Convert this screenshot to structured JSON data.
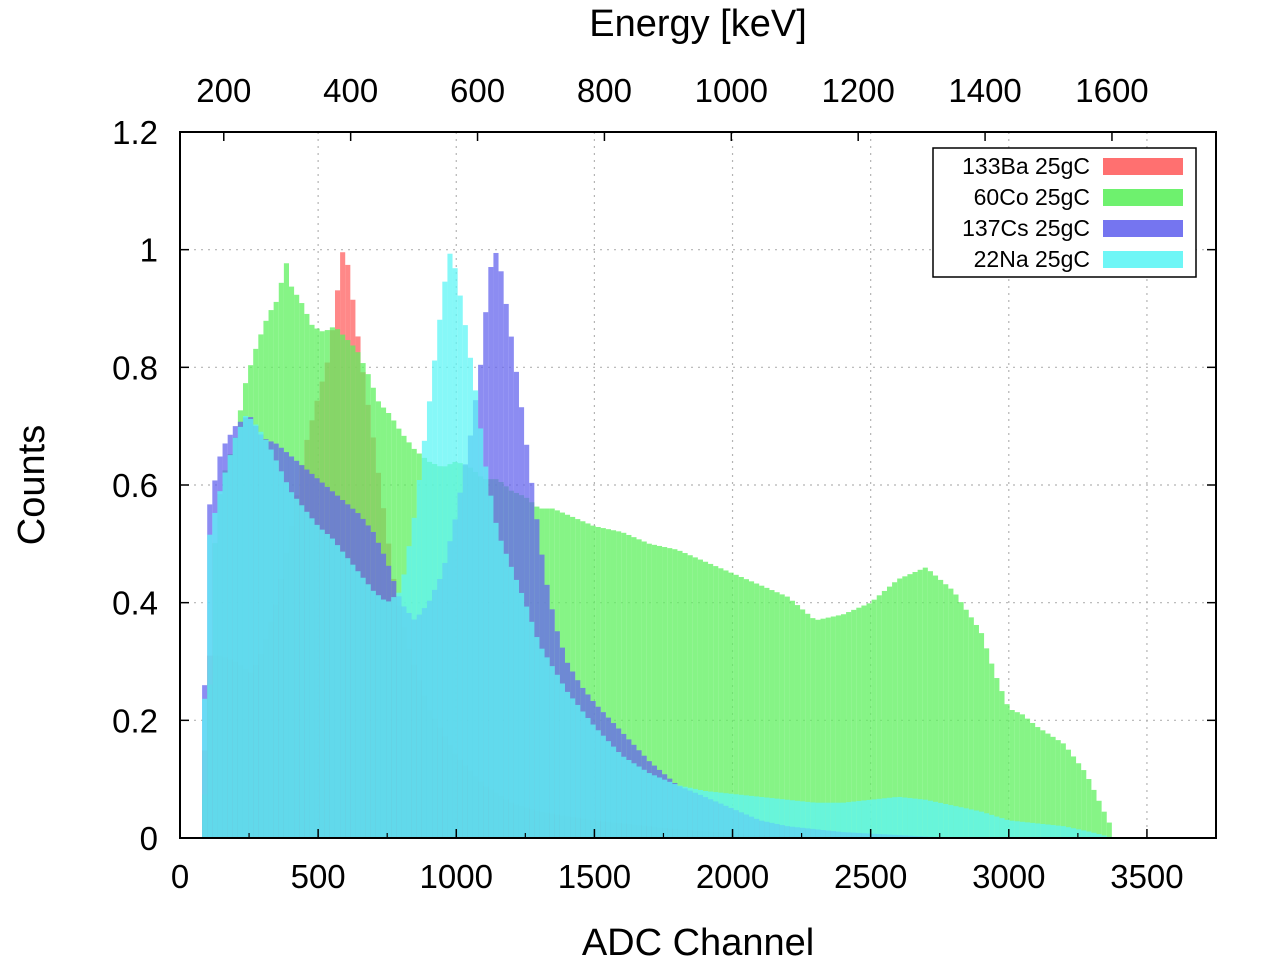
{
  "chart_data": {
    "type": "histogram",
    "xlabel": "ADC Channel",
    "x2label": "Energy [keV]",
    "ylabel": "Counts",
    "xlim": [
      0,
      3750
    ],
    "ylim": [
      0,
      1.2
    ],
    "x2lim": [
      131,
      1764
    ],
    "xticks": [
      0,
      500,
      1000,
      1500,
      2000,
      2500,
      3000,
      3500
    ],
    "xtick_labels": [
      "0",
      "500",
      "1000",
      "1500",
      "2000",
      "2500",
      "3000",
      "3500"
    ],
    "x2ticks": [
      200,
      400,
      600,
      800,
      1000,
      1200,
      1400,
      1600
    ],
    "x2tick_labels": [
      "200",
      "400",
      "600",
      "800",
      "1000",
      "1200",
      "1400",
      "1600"
    ],
    "yticks": [
      0,
      0.2,
      0.4,
      0.6,
      0.8,
      1,
      1.2
    ],
    "ytick_labels": [
      "0",
      "0.2",
      "0.4",
      "0.6",
      "0.8",
      "1",
      "1.2"
    ],
    "grid": true,
    "legend_position": "top-right",
    "series": [
      {
        "name": "133Ba 25gC",
        "color": "#ff6060",
        "points": [
          [
            80,
            0.01
          ],
          [
            100,
            0.31
          ],
          [
            150,
            0.31
          ],
          [
            200,
            0.3
          ],
          [
            260,
            0.28
          ],
          [
            300,
            0.32
          ],
          [
            350,
            0.4
          ],
          [
            400,
            0.52
          ],
          [
            450,
            0.66
          ],
          [
            500,
            0.75
          ],
          [
            540,
            0.82
          ],
          [
            570,
            0.93
          ],
          [
            590,
            1.0
          ],
          [
            610,
            0.97
          ],
          [
            630,
            0.9
          ],
          [
            660,
            0.8
          ],
          [
            700,
            0.68
          ],
          [
            740,
            0.55
          ],
          [
            780,
            0.42
          ],
          [
            830,
            0.32
          ],
          [
            900,
            0.22
          ],
          [
            1000,
            0.14
          ],
          [
            1100,
            0.09
          ],
          [
            1200,
            0.06
          ],
          [
            1300,
            0.045
          ],
          [
            1500,
            0.03
          ],
          [
            1800,
            0.015
          ],
          [
            2100,
            0.005
          ],
          [
            2300,
            0.0
          ]
        ]
      },
      {
        "name": "60Co 25gC",
        "color": "#5ef05e",
        "points": [
          [
            80,
            0.0
          ],
          [
            100,
            0.16
          ],
          [
            130,
            0.55
          ],
          [
            160,
            0.62
          ],
          [
            200,
            0.68
          ],
          [
            240,
            0.78
          ],
          [
            280,
            0.84
          ],
          [
            320,
            0.89
          ],
          [
            360,
            0.92
          ],
          [
            380,
            0.99
          ],
          [
            400,
            0.94
          ],
          [
            440,
            0.91
          ],
          [
            480,
            0.87
          ],
          [
            520,
            0.86
          ],
          [
            560,
            0.87
          ],
          [
            600,
            0.85
          ],
          [
            640,
            0.83
          ],
          [
            680,
            0.79
          ],
          [
            720,
            0.74
          ],
          [
            760,
            0.72
          ],
          [
            800,
            0.69
          ],
          [
            850,
            0.66
          ],
          [
            900,
            0.64
          ],
          [
            950,
            0.63
          ],
          [
            1000,
            0.64
          ],
          [
            1050,
            0.63
          ],
          [
            1100,
            0.61
          ],
          [
            1150,
            0.61
          ],
          [
            1200,
            0.59
          ],
          [
            1250,
            0.58
          ],
          [
            1300,
            0.56
          ],
          [
            1350,
            0.56
          ],
          [
            1400,
            0.55
          ],
          [
            1500,
            0.53
          ],
          [
            1600,
            0.52
          ],
          [
            1700,
            0.5
          ],
          [
            1800,
            0.49
          ],
          [
            1900,
            0.47
          ],
          [
            2000,
            0.45
          ],
          [
            2100,
            0.43
          ],
          [
            2200,
            0.41
          ],
          [
            2300,
            0.37
          ],
          [
            2400,
            0.38
          ],
          [
            2500,
            0.4
          ],
          [
            2600,
            0.44
          ],
          [
            2700,
            0.46
          ],
          [
            2800,
            0.42
          ],
          [
            2900,
            0.35
          ],
          [
            2950,
            0.28
          ],
          [
            3000,
            0.22
          ],
          [
            3050,
            0.21
          ],
          [
            3100,
            0.19
          ],
          [
            3200,
            0.16
          ],
          [
            3280,
            0.11
          ],
          [
            3330,
            0.06
          ],
          [
            3370,
            0.02
          ],
          [
            3380,
            0.0
          ]
        ]
      },
      {
        "name": "137Cs 25gC",
        "color": "#6666ee",
        "points": [
          [
            80,
            0.01
          ],
          [
            100,
            0.55
          ],
          [
            150,
            0.66
          ],
          [
            200,
            0.7
          ],
          [
            250,
            0.72
          ],
          [
            300,
            0.68
          ],
          [
            350,
            0.67
          ],
          [
            400,
            0.65
          ],
          [
            450,
            0.63
          ],
          [
            500,
            0.61
          ],
          [
            550,
            0.59
          ],
          [
            600,
            0.57
          ],
          [
            650,
            0.55
          ],
          [
            700,
            0.52
          ],
          [
            750,
            0.47
          ],
          [
            800,
            0.4
          ],
          [
            850,
            0.37
          ],
          [
            900,
            0.4
          ],
          [
            950,
            0.45
          ],
          [
            1000,
            0.55
          ],
          [
            1050,
            0.68
          ],
          [
            1090,
            0.81
          ],
          [
            1120,
            0.96
          ],
          [
            1140,
            1.0
          ],
          [
            1160,
            0.97
          ],
          [
            1200,
            0.85
          ],
          [
            1240,
            0.72
          ],
          [
            1280,
            0.58
          ],
          [
            1320,
            0.45
          ],
          [
            1360,
            0.36
          ],
          [
            1400,
            0.3
          ],
          [
            1450,
            0.26
          ],
          [
            1500,
            0.23
          ],
          [
            1600,
            0.18
          ],
          [
            1700,
            0.13
          ],
          [
            1800,
            0.09
          ],
          [
            1900,
            0.07
          ],
          [
            2000,
            0.05
          ],
          [
            2100,
            0.03
          ],
          [
            2200,
            0.02
          ],
          [
            2400,
            0.01
          ],
          [
            2600,
            0.005
          ],
          [
            2800,
            0.0
          ]
        ]
      },
      {
        "name": "22Na 25gC",
        "color": "#5ef5f5",
        "points": [
          [
            80,
            0.01
          ],
          [
            100,
            0.5
          ],
          [
            150,
            0.6
          ],
          [
            200,
            0.68
          ],
          [
            240,
            0.72
          ],
          [
            280,
            0.7
          ],
          [
            320,
            0.67
          ],
          [
            360,
            0.63
          ],
          [
            400,
            0.59
          ],
          [
            450,
            0.56
          ],
          [
            500,
            0.53
          ],
          [
            550,
            0.51
          ],
          [
            600,
            0.48
          ],
          [
            650,
            0.45
          ],
          [
            700,
            0.42
          ],
          [
            750,
            0.4
          ],
          [
            800,
            0.42
          ],
          [
            850,
            0.55
          ],
          [
            900,
            0.73
          ],
          [
            940,
            0.88
          ],
          [
            960,
            0.95
          ],
          [
            980,
            1.0
          ],
          [
            1000,
            0.96
          ],
          [
            1030,
            0.88
          ],
          [
            1070,
            0.76
          ],
          [
            1110,
            0.62
          ],
          [
            1150,
            0.52
          ],
          [
            1200,
            0.46
          ],
          [
            1250,
            0.4
          ],
          [
            1300,
            0.33
          ],
          [
            1400,
            0.25
          ],
          [
            1500,
            0.19
          ],
          [
            1600,
            0.14
          ],
          [
            1700,
            0.11
          ],
          [
            1800,
            0.09
          ],
          [
            1900,
            0.08
          ],
          [
            2000,
            0.075
          ],
          [
            2100,
            0.07
          ],
          [
            2200,
            0.065
          ],
          [
            2300,
            0.06
          ],
          [
            2400,
            0.06
          ],
          [
            2500,
            0.065
          ],
          [
            2600,
            0.07
          ],
          [
            2700,
            0.065
          ],
          [
            2800,
            0.055
          ],
          [
            2900,
            0.045
          ],
          [
            3000,
            0.03
          ],
          [
            3100,
            0.025
          ],
          [
            3200,
            0.02
          ],
          [
            3300,
            0.01
          ],
          [
            3380,
            0.0
          ]
        ]
      }
    ]
  }
}
